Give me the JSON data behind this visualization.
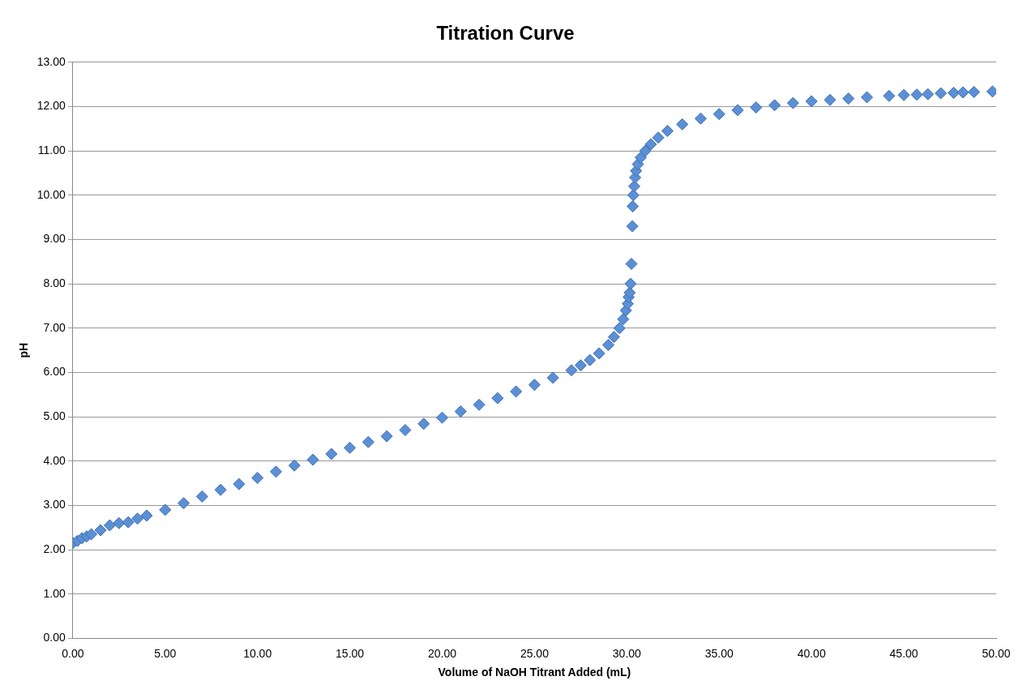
{
  "chart_data": {
    "type": "scatter",
    "title": "Titration Curve",
    "xlabel": "Volume of NaOH Titrant Added (mL)",
    "ylabel": "pH",
    "marker": "diamond",
    "grid": "y",
    "legend": false,
    "xlim": [
      0,
      50
    ],
    "ylim": [
      0,
      13
    ],
    "xticks": [
      {
        "value": 0,
        "label": "0.00"
      },
      {
        "value": 5,
        "label": "5.00"
      },
      {
        "value": 10,
        "label": "10.00"
      },
      {
        "value": 15,
        "label": "15.00"
      },
      {
        "value": 20,
        "label": "20.00"
      },
      {
        "value": 25,
        "label": "25.00"
      },
      {
        "value": 30,
        "label": "30.00"
      },
      {
        "value": 35,
        "label": "35.00"
      },
      {
        "value": 40,
        "label": "40.00"
      },
      {
        "value": 45,
        "label": "45.00"
      },
      {
        "value": 50,
        "label": "50.00"
      }
    ],
    "yticks": [
      {
        "value": 0,
        "label": "0.00"
      },
      {
        "value": 1,
        "label": "1.00"
      },
      {
        "value": 2,
        "label": "2.00"
      },
      {
        "value": 3,
        "label": "3.00"
      },
      {
        "value": 4,
        "label": "4.00"
      },
      {
        "value": 5,
        "label": "5.00"
      },
      {
        "value": 6,
        "label": "6.00"
      },
      {
        "value": 7,
        "label": "7.00"
      },
      {
        "value": 8,
        "label": "8.00"
      },
      {
        "value": 9,
        "label": "9.00"
      },
      {
        "value": 10,
        "label": "10.00"
      },
      {
        "value": 11,
        "label": "11.00"
      },
      {
        "value": 12,
        "label": "12.00"
      },
      {
        "value": 13,
        "label": "13.00"
      }
    ],
    "series": [
      {
        "color": "#5b8fd6",
        "x": [
          0,
          0.25,
          0.5,
          0.75,
          1,
          1.5,
          2,
          2.5,
          3,
          3.5,
          4,
          5,
          6,
          7,
          8,
          9,
          10,
          11,
          12,
          13,
          14,
          15,
          16,
          17,
          18,
          19,
          20,
          21,
          22,
          23,
          24,
          25,
          26,
          27,
          27.5,
          28,
          28.5,
          29,
          29.3,
          29.6,
          29.8,
          29.95,
          30.05,
          30.1,
          30.15,
          30.2,
          30.25,
          30.3,
          30.32,
          30.35,
          30.4,
          30.45,
          30.5,
          30.6,
          30.75,
          31,
          31.3,
          31.7,
          32.2,
          33,
          34,
          35,
          36,
          37,
          38,
          39,
          40,
          41,
          42,
          43,
          44.2,
          45,
          45.7,
          46.3,
          47,
          47.7,
          48.2,
          48.8,
          49.8
        ],
        "values": [
          2.15,
          2.2,
          2.26,
          2.3,
          2.35,
          2.44,
          2.55,
          2.6,
          2.62,
          2.7,
          2.77,
          2.9,
          3.05,
          3.2,
          3.35,
          3.48,
          3.62,
          3.76,
          3.9,
          4.03,
          4.16,
          4.3,
          4.43,
          4.56,
          4.7,
          4.84,
          4.98,
          5.12,
          5.27,
          5.42,
          5.57,
          5.72,
          5.88,
          6.05,
          6.16,
          6.28,
          6.43,
          6.62,
          6.8,
          7.0,
          7.2,
          7.4,
          7.55,
          7.7,
          7.8,
          8.0,
          8.45,
          9.3,
          9.75,
          10.0,
          10.2,
          10.4,
          10.55,
          10.7,
          10.85,
          11.0,
          11.15,
          11.3,
          11.45,
          11.6,
          11.73,
          11.83,
          11.92,
          11.98,
          12.03,
          12.08,
          12.12,
          12.15,
          12.18,
          12.21,
          12.24,
          12.26,
          12.27,
          12.28,
          12.3,
          12.31,
          12.32,
          12.33,
          12.34
        ]
      }
    ]
  }
}
